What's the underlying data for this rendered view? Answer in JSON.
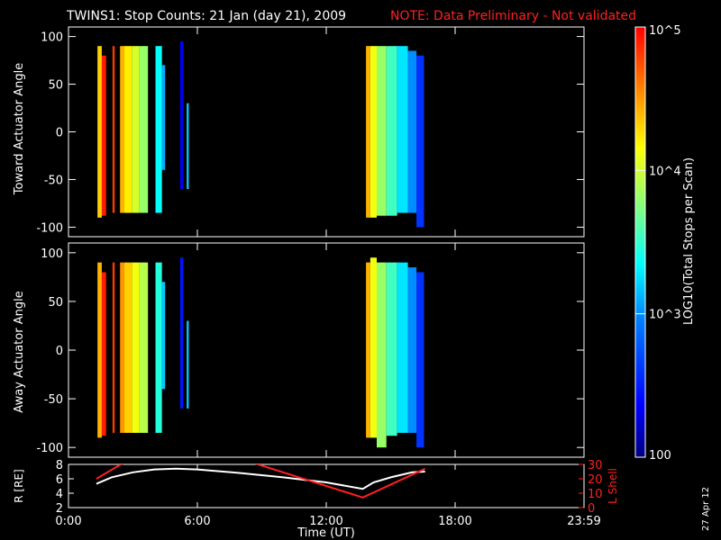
{
  "title": "TWINS1: Stop Counts: 21 Jan (day  21), 2009",
  "note": "NOTE: Data Preliminary - Not validated",
  "date_stamp": "27 Apr 12",
  "colorbar": {
    "label": "LOG10(Total Stops per Scan)",
    "ticks": [
      "10^5",
      "10^4",
      "10^3",
      "100"
    ],
    "colors": [
      "#00007f",
      "#0000ff",
      "#0080ff",
      "#00ffff",
      "#80ff80",
      "#ffff00",
      "#ff8000",
      "#ff0000"
    ]
  },
  "chart_data": [
    {
      "type": "heatmap",
      "name": "toward",
      "ylabel": "Toward Actuator Angle",
      "ylim": [
        -110,
        110
      ],
      "yticks": [
        -100,
        -50,
        0,
        50,
        100
      ],
      "xlim": [
        0,
        24
      ],
      "bands": [
        {
          "t0": 1.35,
          "t1": 1.55,
          "ymin": -90,
          "ymax": 90,
          "level": 4.3
        },
        {
          "t0": 1.55,
          "t1": 1.75,
          "ymin": -88,
          "ymax": 80,
          "level": 4.9
        },
        {
          "t0": 2.05,
          "t1": 2.15,
          "ymin": -85,
          "ymax": 90,
          "level": 4.8
        },
        {
          "t0": 2.4,
          "t1": 2.6,
          "ymin": -85,
          "ymax": 90,
          "level": 4.4
        },
        {
          "t0": 2.6,
          "t1": 2.95,
          "ymin": -85,
          "ymax": 90,
          "level": 4.2
        },
        {
          "t0": 2.95,
          "t1": 3.3,
          "ymin": -85,
          "ymax": 90,
          "level": 4.0
        },
        {
          "t0": 3.3,
          "t1": 3.7,
          "ymin": -85,
          "ymax": 90,
          "level": 3.8
        },
        {
          "t0": 4.05,
          "t1": 4.35,
          "ymin": -85,
          "ymax": 90,
          "level": 3.3
        },
        {
          "t0": 4.35,
          "t1": 4.5,
          "ymin": -40,
          "ymax": 70,
          "level": 3.0
        },
        {
          "t0": 5.2,
          "t1": 5.35,
          "ymin": -60,
          "ymax": 95,
          "level": 2.4
        },
        {
          "t0": 5.5,
          "t1": 5.6,
          "ymin": -60,
          "ymax": 30,
          "level": 3.1
        },
        {
          "t0": 13.85,
          "t1": 14.05,
          "ymin": -90,
          "ymax": 90,
          "level": 4.4
        },
        {
          "t0": 14.05,
          "t1": 14.35,
          "ymin": -90,
          "ymax": 90,
          "level": 4.1
        },
        {
          "t0": 14.35,
          "t1": 14.8,
          "ymin": -88,
          "ymax": 90,
          "level": 3.8
        },
        {
          "t0": 14.8,
          "t1": 15.3,
          "ymin": -88,
          "ymax": 90,
          "level": 3.5
        },
        {
          "t0": 15.3,
          "t1": 15.8,
          "ymin": -85,
          "ymax": 90,
          "level": 3.2
        },
        {
          "t0": 15.8,
          "t1": 16.2,
          "ymin": -85,
          "ymax": 85,
          "level": 2.9
        },
        {
          "t0": 16.2,
          "t1": 16.55,
          "ymin": -100,
          "ymax": 80,
          "level": 2.6
        }
      ]
    },
    {
      "type": "heatmap",
      "name": "away",
      "ylabel": "Away Actuator Angle",
      "ylim": [
        -110,
        110
      ],
      "yticks": [
        -100,
        -50,
        0,
        50,
        100
      ],
      "xlim": [
        0,
        24
      ],
      "bands": [
        {
          "t0": 1.35,
          "t1": 1.55,
          "ymin": -90,
          "ymax": 90,
          "level": 4.4
        },
        {
          "t0": 1.55,
          "t1": 1.75,
          "ymin": -88,
          "ymax": 80,
          "level": 4.9
        },
        {
          "t0": 2.05,
          "t1": 2.15,
          "ymin": -85,
          "ymax": 90,
          "level": 4.8
        },
        {
          "t0": 2.4,
          "t1": 2.6,
          "ymin": -85,
          "ymax": 90,
          "level": 4.5
        },
        {
          "t0": 2.6,
          "t1": 2.95,
          "ymin": -85,
          "ymax": 90,
          "level": 4.3
        },
        {
          "t0": 2.95,
          "t1": 3.3,
          "ymin": -85,
          "ymax": 90,
          "level": 4.1
        },
        {
          "t0": 3.3,
          "t1": 3.7,
          "ymin": -85,
          "ymax": 90,
          "level": 3.9
        },
        {
          "t0": 4.05,
          "t1": 4.35,
          "ymin": -85,
          "ymax": 90,
          "level": 3.4
        },
        {
          "t0": 4.35,
          "t1": 4.5,
          "ymin": -40,
          "ymax": 70,
          "level": 3.1
        },
        {
          "t0": 5.2,
          "t1": 5.35,
          "ymin": -60,
          "ymax": 95,
          "level": 2.5
        },
        {
          "t0": 5.5,
          "t1": 5.6,
          "ymin": -60,
          "ymax": 30,
          "level": 3.1
        },
        {
          "t0": 13.85,
          "t1": 14.05,
          "ymin": -90,
          "ymax": 90,
          "level": 4.4
        },
        {
          "t0": 14.05,
          "t1": 14.35,
          "ymin": -90,
          "ymax": 95,
          "level": 4.1
        },
        {
          "t0": 14.35,
          "t1": 14.8,
          "ymin": -100,
          "ymax": 90,
          "level": 3.8
        },
        {
          "t0": 14.8,
          "t1": 15.3,
          "ymin": -88,
          "ymax": 90,
          "level": 3.5
        },
        {
          "t0": 15.3,
          "t1": 15.8,
          "ymin": -85,
          "ymax": 90,
          "level": 3.2
        },
        {
          "t0": 15.8,
          "t1": 16.2,
          "ymin": -85,
          "ymax": 85,
          "level": 2.9
        },
        {
          "t0": 16.2,
          "t1": 16.55,
          "ymin": -100,
          "ymax": 80,
          "level": 2.6
        }
      ]
    },
    {
      "type": "line",
      "name": "orbit",
      "xlabel": "Time (UT)",
      "xticks": [
        "0:00",
        "6:00",
        "12:00",
        "18:00",
        "23:59"
      ],
      "xlim": [
        0,
        24
      ],
      "ylabel": "R [RE]",
      "ylim": [
        2,
        8
      ],
      "yticks": [
        2,
        4,
        6,
        8
      ],
      "y2label": "L Shell",
      "y2lim": [
        0,
        30
      ],
      "y2ticks": [
        0,
        10,
        20,
        30
      ],
      "series": [
        {
          "axis": "left",
          "color": "#ffffff",
          "x": [
            1.3,
            2.0,
            3.0,
            4.0,
            5.0,
            6.0,
            8.0,
            10.0,
            12.0,
            13.7,
            14.2,
            15.0,
            16.0,
            16.6
          ],
          "y": [
            5.3,
            6.2,
            6.9,
            7.3,
            7.4,
            7.3,
            6.8,
            6.2,
            5.5,
            4.6,
            5.5,
            6.2,
            6.9,
            7.0
          ]
        },
        {
          "axis": "right",
          "color": "#ff2020",
          "x": [
            1.3,
            2.2,
            2.7,
            8.4,
            13.7,
            16.6
          ],
          "y": [
            20,
            28,
            32,
            32,
            7,
            27
          ]
        }
      ]
    }
  ]
}
